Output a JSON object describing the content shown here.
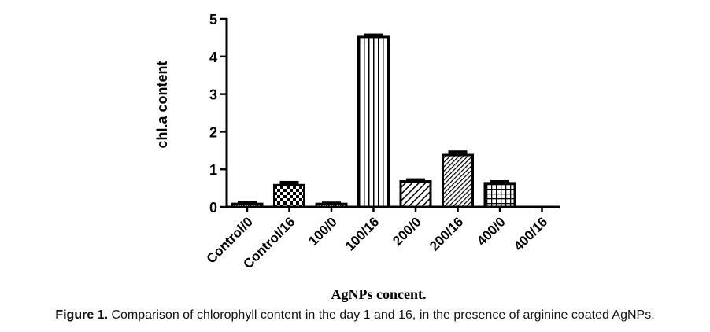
{
  "chart_data": {
    "type": "bar",
    "categories": [
      "Control/0",
      "Control/16",
      "100/0",
      "100/16",
      "200/0",
      "200/16",
      "400/0",
      "400/16"
    ],
    "values": [
      0.08,
      0.58,
      0.08,
      4.52,
      0.68,
      1.38,
      0.63,
      0
    ],
    "errors": [
      0.03,
      0.07,
      0.02,
      0.05,
      0.04,
      0.08,
      0.04,
      0
    ],
    "patterns": [
      "dots",
      "checker",
      "dots",
      "vlines",
      "diag",
      "diag-dense",
      "grid",
      "none"
    ],
    "xlabel": "AgNPs concent.",
    "ylabel": "chl.a content",
    "ylim": [
      0,
      5
    ],
    "yticks": [
      "0",
      "1",
      "2",
      "3",
      "4",
      "5"
    ]
  },
  "caption": {
    "label": "Figure 1.",
    "text": " Comparison of chlorophyll content in the day 1 and 16, in the presence of arginine coated AgNPs."
  }
}
